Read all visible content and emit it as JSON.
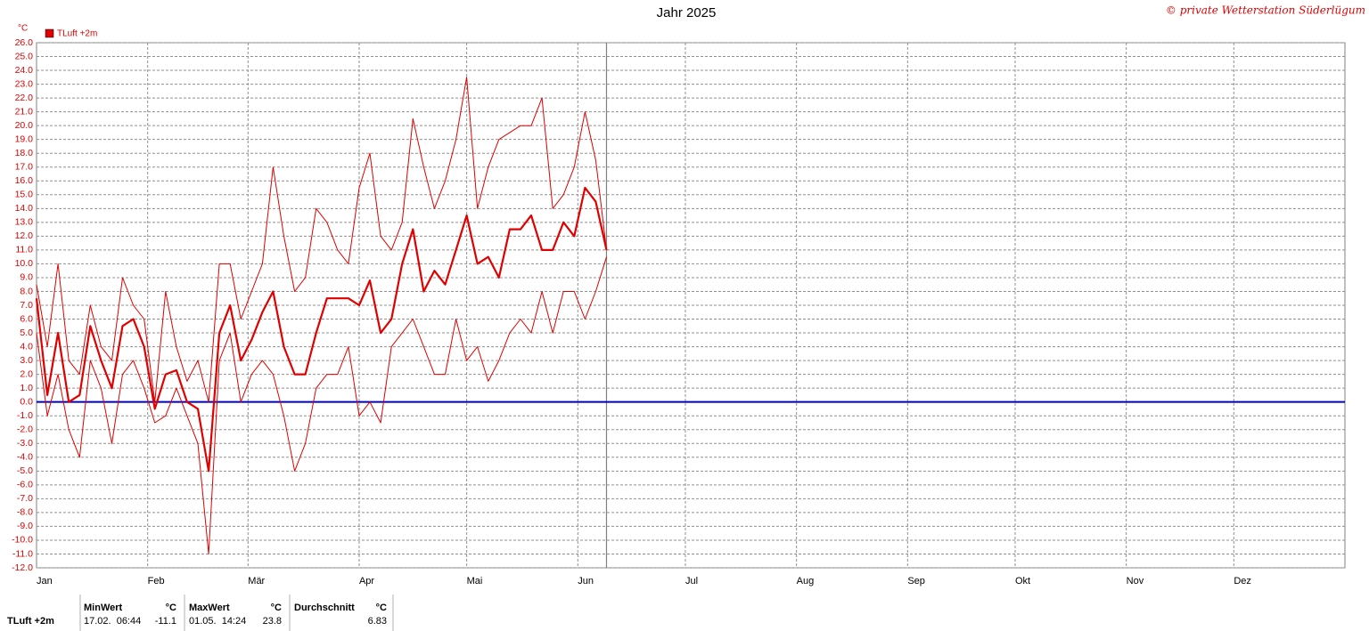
{
  "chart_data": {
    "type": "line",
    "title": "Jahr 2025",
    "copyright": "© private Wetterstation Süderlügum",
    "y_unit": "°C",
    "legend": "TLuft +2m",
    "legend_position": "top-left",
    "legend_color": "#e00000",
    "x": [
      0,
      3,
      6,
      9,
      12,
      15,
      18,
      21,
      24,
      27,
      30,
      33,
      36,
      39,
      42,
      45,
      48,
      51,
      54,
      57,
      60,
      63,
      66,
      69,
      72,
      75,
      78,
      81,
      84,
      87,
      90,
      93,
      96,
      99,
      102,
      105,
      108,
      111,
      114,
      117,
      120,
      123,
      126,
      129,
      132,
      135,
      138,
      141,
      144,
      147,
      150,
      153,
      156,
      159
    ],
    "series": [
      {
        "color": "#e00000",
        "width": 2.2,
        "values": [
          7.5,
          0.5,
          5,
          0,
          0.5,
          5.5,
          3,
          1,
          5.5,
          6,
          4,
          -0.5,
          2,
          2.3,
          0,
          -0.5,
          -5,
          5,
          7,
          3,
          4.5,
          6.5,
          8,
          4,
          2,
          2,
          5,
          7.5,
          7.5,
          7.5,
          7,
          8.8,
          5,
          6,
          10,
          12.5,
          8,
          9.5,
          8.5,
          11,
          13.5,
          10,
          10.5,
          9,
          12.5,
          12.5,
          13.5,
          11,
          11,
          13,
          12,
          15.5,
          14.5,
          11
        ]
      },
      {
        "color": "#e00000",
        "width": 1,
        "values": [
          8.5,
          4,
          10,
          3,
          2,
          7,
          4,
          3,
          9,
          7,
          6,
          0,
          8,
          4,
          1.5,
          3,
          0,
          10,
          10,
          6,
          8,
          10,
          17,
          12,
          8,
          9,
          14,
          13,
          11,
          10,
          15.5,
          18,
          12,
          11,
          13,
          20.5,
          17,
          14,
          16,
          19,
          23.5,
          14,
          17,
          19,
          19.5,
          20,
          20,
          22,
          14,
          15,
          17,
          21,
          17.5,
          11
        ]
      },
      {
        "color": "#e00000",
        "width": 1,
        "values": [
          5,
          -1,
          2,
          -2,
          -4,
          3,
          1,
          -3,
          2,
          3,
          1,
          -1.5,
          -1,
          1,
          -1,
          -3,
          -11,
          3,
          5,
          0,
          2,
          3,
          2,
          -1,
          -5,
          -3,
          1,
          2,
          2,
          4,
          -1,
          0,
          -1.5,
          4,
          5,
          6,
          4,
          2,
          2,
          6,
          3,
          4,
          1.5,
          3,
          5,
          6,
          5,
          8,
          5,
          8,
          8,
          6,
          8,
          10.5
        ]
      }
    ],
    "xlim": [
      0,
      365
    ],
    "xticks": [
      {
        "value": 0,
        "label": "Jan"
      },
      {
        "value": 31,
        "label": "Feb"
      },
      {
        "value": 59,
        "label": "Mär"
      },
      {
        "value": 90,
        "label": "Apr"
      },
      {
        "value": 120,
        "label": "Mai"
      },
      {
        "value": 151,
        "label": "Jun"
      },
      {
        "value": 181,
        "label": "Jul"
      },
      {
        "value": 212,
        "label": "Aug"
      },
      {
        "value": 243,
        "label": "Sep"
      },
      {
        "value": 273,
        "label": "Okt"
      },
      {
        "value": 304,
        "label": "Nov"
      },
      {
        "value": 334,
        "label": "Dez"
      }
    ],
    "ylim": [
      -12,
      26
    ],
    "yticks": [
      {
        "value": 26,
        "label": "26.0"
      },
      {
        "value": 25,
        "label": "25.0"
      },
      {
        "value": 24,
        "label": "24.0"
      },
      {
        "value": 23,
        "label": "23.0"
      },
      {
        "value": 22,
        "label": "22.0"
      },
      {
        "value": 21,
        "label": "21.0"
      },
      {
        "value": 20,
        "label": "20.0"
      },
      {
        "value": 19,
        "label": "19.0"
      },
      {
        "value": 18,
        "label": "18.0"
      },
      {
        "value": 17,
        "label": "17.0"
      },
      {
        "value": 16,
        "label": "16.0"
      },
      {
        "value": 15,
        "label": "15.0"
      },
      {
        "value": 14,
        "label": "14.0"
      },
      {
        "value": 13,
        "label": "13.0"
      },
      {
        "value": 12,
        "label": "12.0"
      },
      {
        "value": 11,
        "label": "11.0"
      },
      {
        "value": 10,
        "label": "10.0"
      },
      {
        "value": 9,
        "label": "9.0"
      },
      {
        "value": 8,
        "label": "8.0"
      },
      {
        "value": 7,
        "label": "7.0"
      },
      {
        "value": 6,
        "label": "6.0"
      },
      {
        "value": 5,
        "label": "5.0"
      },
      {
        "value": 4,
        "label": "4.0"
      },
      {
        "value": 3,
        "label": "3.0"
      },
      {
        "value": 2,
        "label": "2.0"
      },
      {
        "value": 1,
        "label": "1.0"
      },
      {
        "value": 0,
        "label": "0.0"
      },
      {
        "value": -1,
        "label": "-1.0"
      },
      {
        "value": -2,
        "label": "-2.0"
      },
      {
        "value": -3,
        "label": "-3.0"
      },
      {
        "value": -4,
        "label": "-4.0"
      },
      {
        "value": -5,
        "label": "-5.0"
      },
      {
        "value": -6,
        "label": "-6.0"
      },
      {
        "value": -7,
        "label": "-7.0"
      },
      {
        "value": -8,
        "label": "-8.0"
      },
      {
        "value": -9,
        "label": "-9.0"
      },
      {
        "value": -10,
        "label": "-10.0"
      },
      {
        "value": -11,
        "label": "-11.0"
      },
      {
        "value": -12,
        "label": "-12.0"
      }
    ],
    "grid": true,
    "zero_line_color": "#0000c0"
  },
  "stats": {
    "label": "TLuft +2m",
    "columns": [
      {
        "title": "MinWert",
        "unit": "°C",
        "time": "17.02.  06:44",
        "value": -11.1
      },
      {
        "title": "MaxWert",
        "unit": "°C",
        "time": "01.05.  14:24",
        "value": 23.8
      },
      {
        "title": "Durchschnitt",
        "unit": "°C",
        "value": 6.83
      }
    ]
  }
}
